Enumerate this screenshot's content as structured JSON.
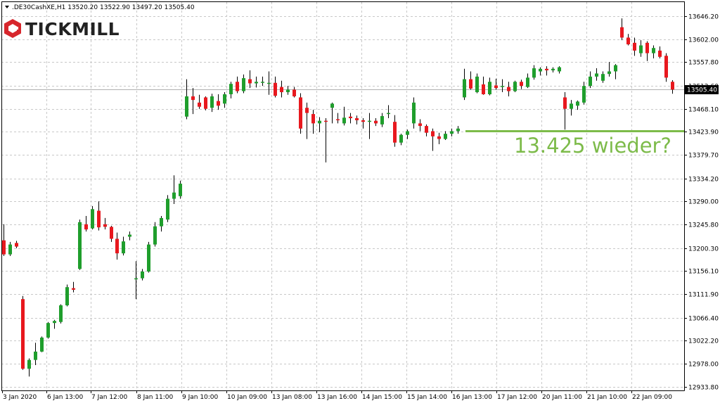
{
  "header": {
    "symbol_line": ".DE30CashXE,H1  13520.20 13522.90 13497.20 13505.40"
  },
  "logo": {
    "text": "TICKMILL",
    "color": "#d7262c"
  },
  "annotation": {
    "text": "13.425 wieder?",
    "color": "#7dbb4a",
    "level": 13425
  },
  "price_label": {
    "text": "13505.40",
    "value": 13505.4
  },
  "chart_data": {
    "type": "candlestick",
    "ylim": [
      12923.5,
      13672
    ],
    "grid": true,
    "y_ticks": [
      "13646.20",
      "13602.00",
      "13557.80",
      "13512.60",
      "13468.10",
      "13423.90",
      "13379.70",
      "13334.20",
      "13290.00",
      "13245.80",
      "13200.30",
      "13156.10",
      "13111.90",
      "13066.40",
      "13022.20",
      "12978.00",
      "12933.80"
    ],
    "x_ticks": [
      "3 Jan 2020",
      "6 Jan 13:00",
      "7 Jan 12:00",
      "8 Jan 11:00",
      "9 Jan 10:00",
      "10 Jan 09:00",
      "13 Jan 08:00",
      "13 Jan 16:00",
      "14 Jan 15:00",
      "15 Jan 14:00",
      "16 Jan 13:00",
      "17 Jan 12:00",
      "20 Jan 11:00",
      "21 Jan 10:00",
      "22 Jan 09:00"
    ],
    "up_color": "#1f9e2c",
    "down_color": "#e8181e",
    "candles": [
      [
        13215,
        13246,
        13185,
        13188
      ],
      [
        13188,
        13212,
        13185,
        13207
      ],
      [
        13210,
        13214,
        13200,
        13203
      ],
      [
        13102,
        13108,
        12966,
        12968
      ],
      [
        12968,
        12988,
        12953,
        12985
      ],
      [
        12985,
        13018,
        12975,
        13001
      ],
      [
        13001,
        13030,
        13000,
        13028
      ],
      [
        13028,
        13058,
        13026,
        13056
      ],
      [
        13056,
        13062,
        13045,
        13060
      ],
      [
        13058,
        13092,
        13055,
        13090
      ],
      [
        13090,
        13130,
        13088,
        13125
      ],
      [
        13123,
        13135,
        13115,
        13120
      ],
      [
        13160,
        13255,
        13158,
        13250
      ],
      [
        13246,
        13262,
        13232,
        13236
      ],
      [
        13238,
        13281,
        13236,
        13275
      ],
      [
        13272,
        13290,
        13234,
        13240
      ],
      [
        13246,
        13258,
        13236,
        13241
      ],
      [
        13241,
        13243,
        13212,
        13218
      ],
      [
        13218,
        13230,
        13178,
        13190
      ],
      [
        13190,
        13222,
        13186,
        13213
      ],
      [
        13222,
        13232,
        13215,
        13226
      ],
      [
        13142,
        13175,
        13102,
        13142
      ],
      [
        13142,
        13160,
        13138,
        13155
      ],
      [
        13155,
        13212,
        13153,
        13207
      ],
      [
        13207,
        13250,
        13203,
        13242
      ],
      [
        13242,
        13262,
        13232,
        13258
      ],
      [
        13255,
        13302,
        13250,
        13295
      ],
      [
        13295,
        13340,
        13285,
        13307
      ],
      [
        13300,
        13330,
        13295,
        13324
      ],
      [
        13453,
        13525,
        13448,
        13492
      ],
      [
        13492,
        13508,
        13458,
        13485
      ],
      [
        13480,
        13495,
        13468,
        13472
      ],
      [
        13490,
        13492,
        13465,
        13468
      ],
      [
        13470,
        13497,
        13462,
        13492
      ],
      [
        13483,
        13496,
        13466,
        13474
      ],
      [
        13478,
        13500,
        13470,
        13496
      ],
      [
        13496,
        13520,
        13488,
        13516
      ],
      [
        13520,
        13530,
        13498,
        13502
      ],
      [
        13502,
        13534,
        13498,
        13527
      ],
      [
        13525,
        13542,
        13508,
        13517
      ],
      [
        13517,
        13530,
        13509,
        13520
      ],
      [
        13518,
        13530,
        13512,
        13520
      ],
      [
        13517,
        13540,
        13495,
        13518
      ],
      [
        13518,
        13530,
        13490,
        13493
      ],
      [
        13510,
        13522,
        13490,
        13500
      ],
      [
        13500,
        13512,
        13495,
        13505
      ],
      [
        13505,
        13510,
        13490,
        13492
      ],
      [
        13490,
        13498,
        13420,
        13430
      ],
      [
        13470,
        13480,
        13410,
        13460
      ],
      [
        13458,
        13466,
        13420,
        13440
      ],
      [
        13440,
        13452,
        13423,
        13445
      ],
      [
        13445,
        13450,
        13365,
        13443
      ],
      [
        13470,
        13480,
        13440,
        13478
      ],
      [
        13448,
        13460,
        13440,
        13446
      ],
      [
        13440,
        13472,
        13436,
        13451
      ],
      [
        13453,
        13460,
        13440,
        13450
      ],
      [
        13450,
        13455,
        13438,
        13446
      ],
      [
        13446,
        13450,
        13430,
        13443
      ],
      [
        13443,
        13460,
        13410,
        13445
      ],
      [
        13445,
        13450,
        13435,
        13440
      ],
      [
        13438,
        13460,
        13433,
        13454
      ],
      [
        13460,
        13475,
        13450,
        13460
      ],
      [
        13443,
        13456,
        13395,
        13403
      ],
      [
        13403,
        13420,
        13398,
        13418
      ],
      [
        13418,
        13428,
        13410,
        13425
      ],
      [
        13440,
        13490,
        13430,
        13480
      ],
      [
        13440,
        13448,
        13425,
        13435
      ],
      [
        13435,
        13438,
        13415,
        13422
      ],
      [
        13425,
        13430,
        13387,
        13415
      ],
      [
        13415,
        13422,
        13400,
        13410
      ],
      [
        13410,
        13425,
        13408,
        13420
      ],
      [
        13420,
        13430,
        13415,
        13425
      ],
      [
        13425,
        13435,
        13420,
        13430
      ],
      [
        13490,
        13545,
        13485,
        13525
      ],
      [
        13525,
        13540,
        13505,
        13507
      ],
      [
        13500,
        13536,
        13498,
        13530
      ],
      [
        13515,
        13530,
        13495,
        13496
      ],
      [
        13496,
        13528,
        13494,
        13520
      ],
      [
        13513,
        13526,
        13505,
        13508
      ],
      [
        13510,
        13525,
        13500,
        13512
      ],
      [
        13510,
        13520,
        13492,
        13502
      ],
      [
        13502,
        13522,
        13500,
        13520
      ],
      [
        13520,
        13524,
        13506,
        13512
      ],
      [
        13510,
        13536,
        13508,
        13528
      ],
      [
        13528,
        13552,
        13524,
        13546
      ],
      [
        13540,
        13548,
        13532,
        13545
      ],
      [
        13545,
        13550,
        13532,
        13542
      ],
      [
        13542,
        13548,
        13538,
        13545
      ],
      [
        13540,
        13550,
        13536,
        13548
      ],
      [
        13490,
        13500,
        13428,
        13468
      ],
      [
        13468,
        13485,
        13455,
        13478
      ],
      [
        13474,
        13484,
        13466,
        13482
      ],
      [
        13480,
        13520,
        13476,
        13512
      ],
      [
        13512,
        13540,
        13508,
        13530
      ],
      [
        13530,
        13546,
        13522,
        13536
      ],
      [
        13522,
        13540,
        13518,
        13535
      ],
      [
        13535,
        13558,
        13530,
        13540
      ],
      [
        13540,
        13554,
        13525,
        13552
      ],
      [
        13625,
        13642,
        13600,
        13605
      ],
      [
        13605,
        13612,
        13590,
        13592
      ],
      [
        13595,
        13605,
        13570,
        13580
      ],
      [
        13575,
        13600,
        13568,
        13590
      ],
      [
        13595,
        13598,
        13560,
        13575
      ],
      [
        13575,
        13590,
        13565,
        13585
      ],
      [
        13580,
        13588,
        13565,
        13568
      ],
      [
        13570,
        13575,
        13520,
        13528
      ],
      [
        13520,
        13523,
        13497,
        13505
      ]
    ]
  }
}
